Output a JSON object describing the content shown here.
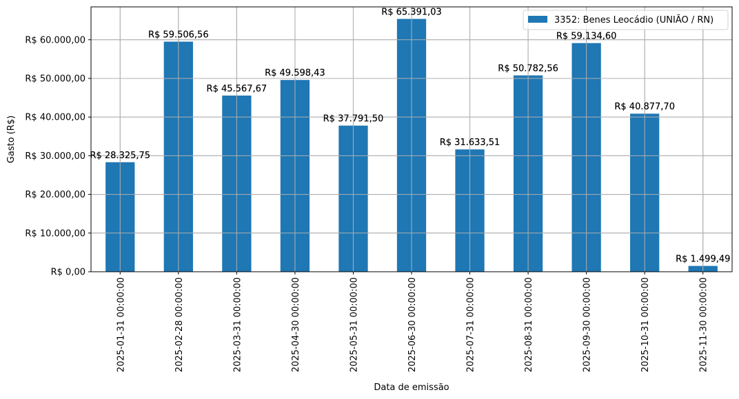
{
  "chart_data": {
    "type": "bar",
    "title": "",
    "xlabel": "Data de emissão",
    "ylabel": "Gasto (R$)",
    "ylim": [
      0,
      68500
    ],
    "grid": true,
    "legend_position": "upper right",
    "bar_color": "#1f77b4",
    "categories": [
      "2025-01-31 00:00:00",
      "2025-02-28 00:00:00",
      "2025-03-31 00:00:00",
      "2025-04-30 00:00:00",
      "2025-05-31 00:00:00",
      "2025-06-30 00:00:00",
      "2025-07-31 00:00:00",
      "2025-08-31 00:00:00",
      "2025-09-30 00:00:00",
      "2025-10-31 00:00:00",
      "2025-11-30 00:00:00"
    ],
    "series": [
      {
        "name": "3352: Benes Leocádio (UNIÃO / RN)",
        "values": [
          28325.75,
          59506.56,
          45567.67,
          49598.43,
          37791.5,
          65391.03,
          31633.51,
          50782.56,
          59134.6,
          40877.7,
          1499.49
        ],
        "labels": [
          "R$ 28.325,75",
          "R$ 59.506,56",
          "R$ 45.567,67",
          "R$ 49.598,43",
          "R$ 37.791,50",
          "R$ 65.391,03",
          "R$ 31.633,51",
          "R$ 50.782,56",
          "R$ 59.134,60",
          "R$ 40.877,70",
          "R$ 1.499,49"
        ]
      }
    ],
    "yticks": [
      0,
      10000,
      20000,
      30000,
      40000,
      50000,
      60000
    ],
    "ytick_labels": [
      "R$ 0,00",
      "R$ 10.000,00",
      "R$ 20.000,00",
      "R$ 30.000,00",
      "R$ 40.000,00",
      "R$ 50.000,00",
      "R$ 60.000,00"
    ]
  }
}
